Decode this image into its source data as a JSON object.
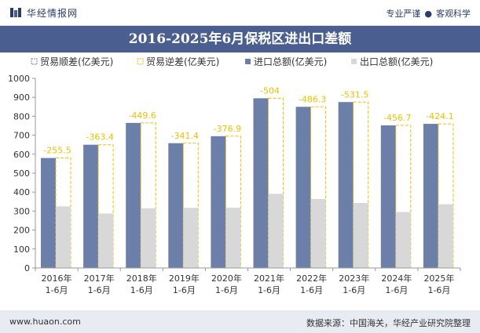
{
  "header": {
    "brand": "华经情报网",
    "slogan_left": "专业严谨",
    "slogan_right": "客观科学"
  },
  "title": "2016-2025年6月保税区进出口差额",
  "footer": {
    "url": "www.huaon.com",
    "source": "数据来源：中国海关，华经产业研究院整理"
  },
  "colors": {
    "title_bg": "#4a5f8f",
    "import": "#6c7fa8",
    "export": "#d8d8d8",
    "deficit": "#f0c000",
    "surplus_border": "#6c7fa8"
  },
  "chart_data": {
    "type": "bar",
    "categories": [
      "2016年\n1-6月",
      "2017年\n1-6月",
      "2018年\n1-6月",
      "2019年\n1-6月",
      "2020年\n1-6月",
      "2021年\n1-6月",
      "2022年\n1-6月",
      "2023年\n1-6月",
      "2024年\n1-6月",
      "2025年\n1-6月"
    ],
    "series": [
      {
        "name": "贸易顺差(亿美元)",
        "values": [
          null,
          null,
          null,
          null,
          null,
          null,
          null,
          null,
          null,
          null
        ]
      },
      {
        "name": "贸易逆差(亿美元)",
        "values": [
          -255.5,
          -363.4,
          -449.6,
          -341.4,
          -376.9,
          -504,
          -486.3,
          -531.5,
          -456.7,
          -424.1
        ]
      },
      {
        "name": "进口总额(亿美元)",
        "values": [
          580,
          650,
          765,
          658,
          695,
          895,
          850,
          875,
          752,
          760
        ]
      },
      {
        "name": "出口总额(亿美元)",
        "values": [
          325,
          287,
          315,
          317,
          318,
          391,
          364,
          343,
          295,
          336
        ]
      }
    ],
    "deficit_labels": [
      "-255.5",
      "-363.4",
      "-449.6",
      "-341.4",
      "-376.9",
      "-504",
      "-486.3",
      "-531.5",
      "-456.7",
      "-424.1"
    ],
    "ylim": [
      0,
      1000
    ],
    "yticks": [
      0,
      100,
      200,
      300,
      400,
      500,
      600,
      700,
      800,
      900,
      1000
    ],
    "legend_position": "top-left",
    "grid": false
  }
}
